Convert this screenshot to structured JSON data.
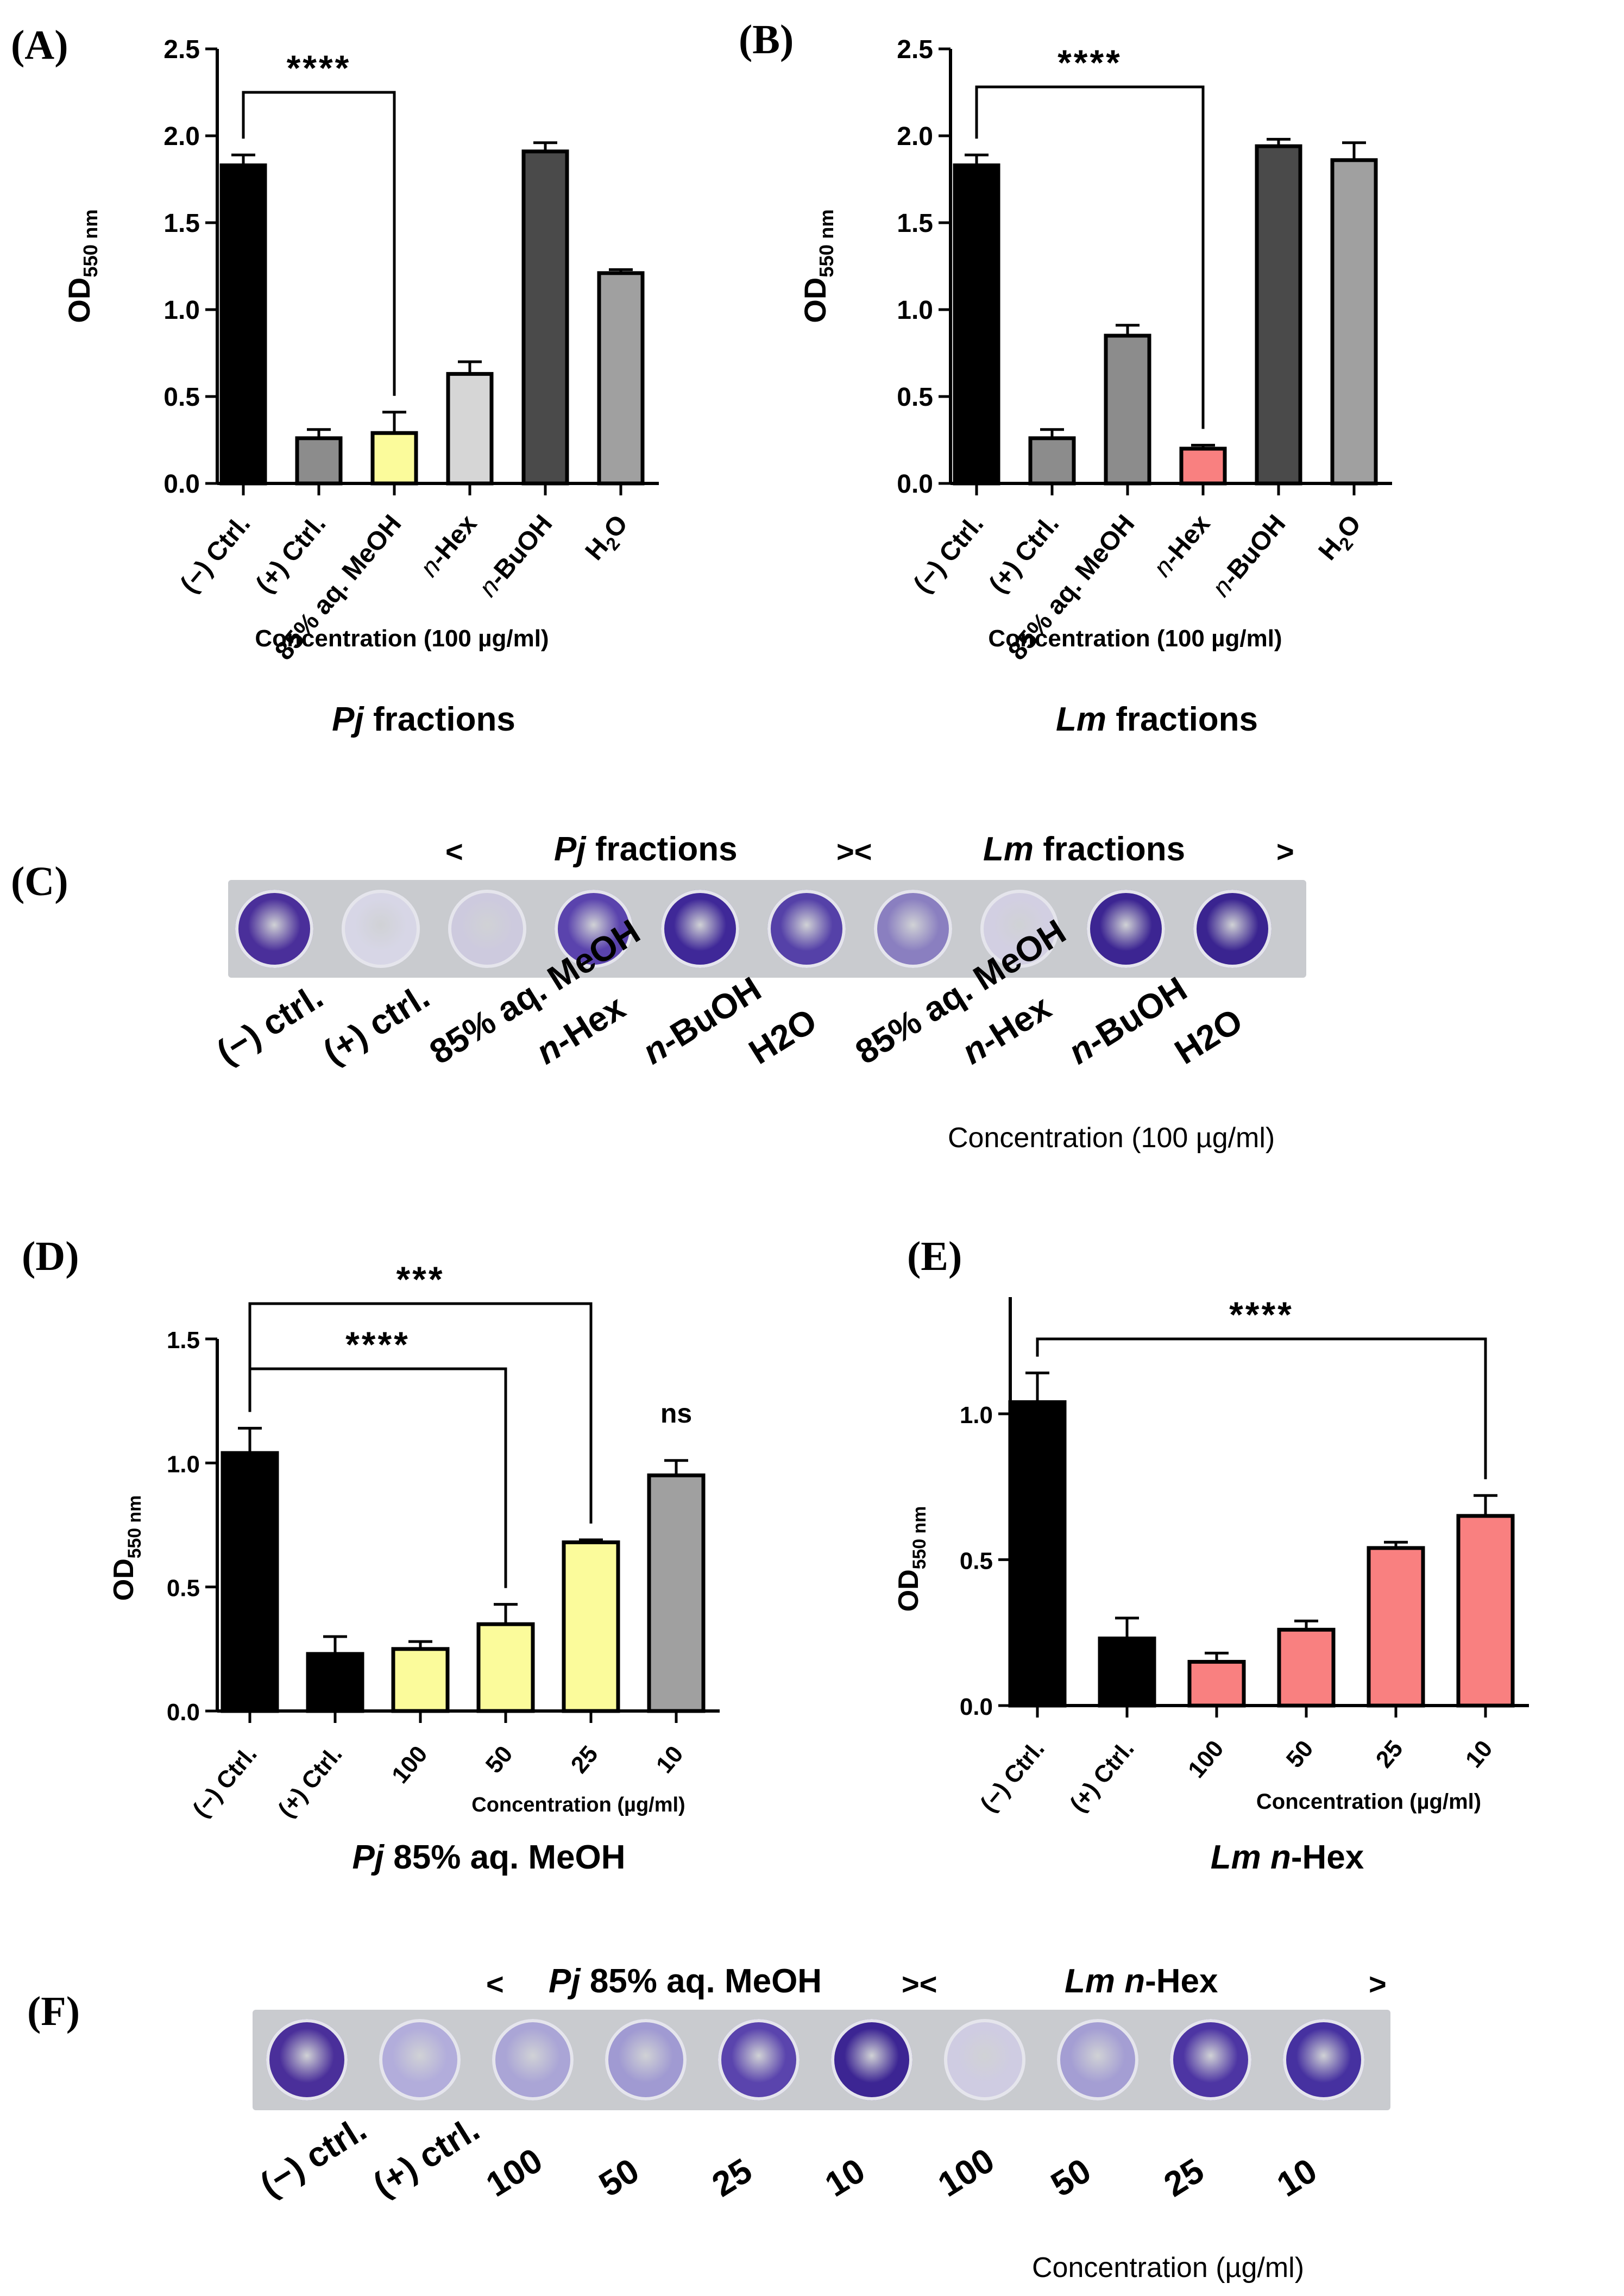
{
  "panels": {
    "A": "(A)",
    "B": "(B)",
    "C": "(C)",
    "D": "(D)",
    "E": "(E)",
    "F": "(F)"
  },
  "chart_data": [
    {
      "id": "A",
      "type": "bar",
      "title": "Pj fractions",
      "title_italic": "Pj",
      "title_rest": " fractions",
      "ylabel": "OD550 nm",
      "ylim": [
        0,
        2.5
      ],
      "yticks": [
        "0.0",
        "0.5",
        "1.0",
        "1.5",
        "2.0",
        "2.5"
      ],
      "categories": [
        "(−) Ctrl.",
        "(+) Ctrl.",
        "85% aq. MeOH",
        "n-Hex",
        "n-BuOH",
        "H2O"
      ],
      "values": [
        1.83,
        0.26,
        0.29,
        0.63,
        1.91,
        1.21
      ],
      "errors": [
        0.06,
        0.05,
        0.12,
        0.07,
        0.05,
        0.02
      ],
      "colors": [
        "#000000",
        "#8c8c8c",
        "#fbfb9b",
        "#d6d6d6",
        "#4a4a4a",
        "#a0a0a0"
      ],
      "xlabel": "Concentration (100 µg/ml)",
      "significance": [
        {
          "from": 0,
          "to": 2,
          "label": "****"
        }
      ]
    },
    {
      "id": "B",
      "type": "bar",
      "title": "Lm fractions",
      "title_italic": "Lm",
      "title_rest": " fractions",
      "ylabel": "OD550 nm",
      "ylim": [
        0,
        2.5
      ],
      "yticks": [
        "0.0",
        "0.5",
        "1.0",
        "1.5",
        "2.0",
        "2.5"
      ],
      "categories": [
        "(−) Ctrl.",
        "(+) Ctrl.",
        "85% aq. MeOH",
        "n-Hex",
        "n-BuOH",
        "H2O"
      ],
      "values": [
        1.83,
        0.26,
        0.85,
        0.2,
        1.94,
        1.86
      ],
      "errors": [
        0.06,
        0.05,
        0.06,
        0.02,
        0.04,
        0.1
      ],
      "colors": [
        "#000000",
        "#8c8c8c",
        "#8c8c8c",
        "#f98080",
        "#4a4a4a",
        "#a0a0a0"
      ],
      "xlabel": "Concentration (100 µg/ml)",
      "significance": [
        {
          "from": 0,
          "to": 3,
          "label": "****"
        }
      ]
    },
    {
      "id": "D",
      "type": "bar",
      "title": "Pj 85% aq. MeOH",
      "title_italic": "Pj",
      "title_rest": " 85% aq. MeOH",
      "ylabel": "OD550 nm",
      "ylim": [
        0,
        1.5
      ],
      "yticks": [
        "0.0",
        "0.5",
        "1.0",
        "1.5"
      ],
      "categories": [
        "(−) Ctrl.",
        "(+) Ctrl.",
        "100",
        "50",
        "25",
        "10"
      ],
      "values": [
        1.04,
        0.23,
        0.25,
        0.35,
        0.68,
        0.95
      ],
      "errors": [
        0.1,
        0.07,
        0.03,
        0.08,
        0.01,
        0.06
      ],
      "colors": [
        "#000000",
        "#000000",
        "#fbfb9b",
        "#fbfb9b",
        "#fbfb9b",
        "#a0a0a0"
      ],
      "xlabel": "Concentration  (µg/ml)",
      "significance": [
        {
          "from": 0,
          "to": 3,
          "label": "****"
        },
        {
          "from": 0,
          "to": 4,
          "label": "***"
        }
      ],
      "annotation": {
        "bar": 5,
        "label": "ns"
      }
    },
    {
      "id": "E",
      "type": "bar",
      "title": "Lm n-Hex",
      "title_italic": "Lm n",
      "title_rest": "-Hex",
      "ylabel": "OD550 nm",
      "ylim": [
        0,
        1.4
      ],
      "yticks": [
        "0.0",
        "0.5",
        "1.0"
      ],
      "categories": [
        "(−) Ctrl.",
        "(+) Ctrl.",
        "100",
        "50",
        "25",
        "10"
      ],
      "values": [
        1.04,
        0.23,
        0.15,
        0.26,
        0.54,
        0.65
      ],
      "errors": [
        0.1,
        0.07,
        0.03,
        0.03,
        0.02,
        0.07
      ],
      "colors": [
        "#000000",
        "#000000",
        "#f98080",
        "#f98080",
        "#f98080",
        "#f98080"
      ],
      "xlabel": "Concentration (µg/ml)",
      "significance": [
        {
          "from": 0,
          "to": 5,
          "label": "****"
        }
      ]
    }
  ],
  "plate_c": {
    "header_left": "<",
    "header_pj": "Pj",
    "header_pj_rest": " fractions",
    "header_mid": "><",
    "header_lm": "Lm",
    "header_lm_rest": " fractions",
    "header_right": ">",
    "labels": [
      "(−) ctrl.",
      "(+) ctrl.",
      "85% aq. MeOH",
      "n-Hex",
      "n-BuOH",
      "H2O",
      "85% aq. MeOH",
      "n-Hex",
      "n-BuOH",
      "H2O"
    ],
    "well_colors": [
      "#4a2f9a",
      "#d7d6e6",
      "#cdcade",
      "#5a43ad",
      "#3f2898",
      "#5541a8",
      "#8a7fc0",
      "#d2cfe2",
      "#3c2592",
      "#3a2490"
    ],
    "concentration": "Concentration (100 µg/ml)"
  },
  "plate_f": {
    "header_left": "<",
    "header_pj": "Pj",
    "header_pj_rest": " 85% aq. MeOH",
    "header_mid": "><",
    "header_lm": "Lm n",
    "header_lm_rest": "-Hex",
    "header_right": ">",
    "labels": [
      "(−) ctrl.",
      "(+) ctrl.",
      "100",
      "50",
      "25",
      "10",
      "100",
      "50",
      "25",
      "10"
    ],
    "well_colors": [
      "#4a2f9a",
      "#b2addb",
      "#aaa5d6",
      "#a09ad2",
      "#5a44ad",
      "#3c2593",
      "#cfcce2",
      "#a49ed3",
      "#4d35a3",
      "#4631a0"
    ],
    "concentration": "Concentration (µg/ml)"
  }
}
